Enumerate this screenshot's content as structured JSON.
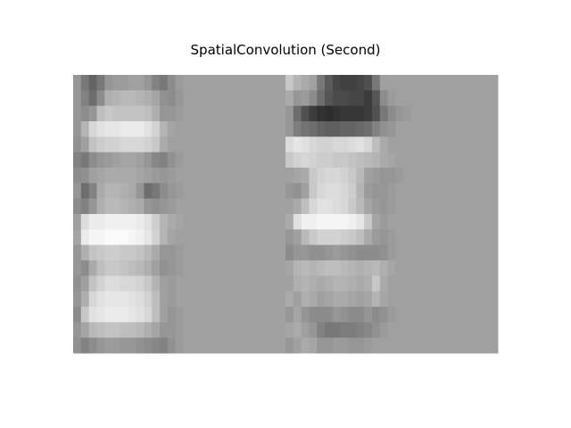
{
  "figure": {
    "title": "SpatialConvolution (Second)"
  },
  "chart_data": {
    "type": "heatmap",
    "title": "SpatialConvolution (Second)",
    "colormap": "gray",
    "value_range": [
      0,
      255
    ],
    "axes_visible": false,
    "rows": 18,
    "cols": 27,
    "values": [
      [
        150,
        120,
        100,
        120,
        150,
        155,
        155,
        160,
        160,
        150,
        130,
        120,
        140,
        155,
        160,
        160,
        160,
        160,
        160,
        160,
        160,
        160,
        160,
        160,
        160,
        160,
        160
      ],
      [
        150,
        130,
        110,
        140,
        175,
        180,
        185,
        185,
        180,
        175,
        165,
        145,
        140,
        150,
        160,
        160,
        160,
        160,
        160,
        160,
        160,
        160,
        160,
        160,
        160,
        160,
        160
      ],
      [
        150,
        140,
        150,
        190,
        200,
        195,
        195,
        195,
        195,
        190,
        175,
        150,
        150,
        155,
        160,
        160,
        160,
        160,
        160,
        160,
        160,
        160,
        160,
        160,
        160,
        160,
        160
      ],
      [
        150,
        180,
        215,
        225,
        230,
        230,
        235,
        235,
        235,
        225,
        210,
        180,
        165,
        160,
        160,
        160,
        160,
        160,
        160,
        160,
        160,
        160,
        160,
        160,
        160,
        160,
        160
      ],
      [
        145,
        160,
        195,
        205,
        210,
        210,
        215,
        215,
        215,
        210,
        200,
        170,
        160,
        160,
        160,
        160,
        160,
        160,
        160,
        160,
        160,
        160,
        160,
        160,
        160,
        160,
        160
      ],
      [
        130,
        120,
        140,
        150,
        155,
        160,
        165,
        165,
        160,
        150,
        135,
        130,
        145,
        155,
        160,
        160,
        160,
        160,
        160,
        160,
        160,
        160,
        160,
        160,
        160,
        160,
        160
      ],
      [
        140,
        145,
        160,
        165,
        170,
        170,
        170,
        170,
        165,
        160,
        155,
        150,
        155,
        160,
        160,
        160,
        160,
        160,
        160,
        160,
        160,
        160,
        160,
        160,
        160,
        160,
        160
      ],
      [
        150,
        110,
        130,
        170,
        180,
        180,
        175,
        170,
        150,
        110,
        120,
        140,
        150,
        155,
        160,
        160,
        160,
        160,
        160,
        160,
        160,
        160,
        160,
        160,
        160,
        160,
        160
      ],
      [
        140,
        130,
        150,
        175,
        185,
        185,
        180,
        175,
        170,
        150,
        145,
        150,
        155,
        160,
        160,
        160,
        160,
        160,
        160,
        160,
        160,
        160,
        160,
        160,
        160,
        160,
        160
      ],
      [
        160,
        220,
        235,
        235,
        240,
        240,
        240,
        240,
        235,
        225,
        205,
        180,
        170,
        165,
        160,
        160,
        160,
        160,
        160,
        160,
        160,
        160,
        160,
        160,
        160,
        160,
        160
      ],
      [
        165,
        235,
        245,
        245,
        250,
        250,
        250,
        245,
        240,
        230,
        210,
        180,
        165,
        160,
        160,
        160,
        160,
        160,
        160,
        160,
        160,
        160,
        160,
        160,
        160,
        160,
        160
      ],
      [
        150,
        175,
        195,
        200,
        205,
        205,
        200,
        200,
        195,
        185,
        170,
        150,
        150,
        155,
        160,
        160,
        160,
        160,
        160,
        160,
        160,
        160,
        160,
        160,
        160,
        160,
        160
      ],
      [
        150,
        140,
        170,
        190,
        200,
        200,
        195,
        190,
        185,
        175,
        160,
        145,
        150,
        155,
        160,
        160,
        160,
        160,
        160,
        160,
        160,
        160,
        160,
        160,
        160,
        160,
        160
      ],
      [
        145,
        160,
        195,
        210,
        220,
        220,
        215,
        215,
        210,
        200,
        180,
        160,
        155,
        160,
        160,
        160,
        160,
        160,
        160,
        160,
        160,
        160,
        160,
        160,
        160,
        160,
        160
      ],
      [
        150,
        175,
        215,
        225,
        230,
        230,
        230,
        225,
        220,
        210,
        190,
        160,
        155,
        160,
        160,
        160,
        160,
        160,
        160,
        160,
        160,
        160,
        160,
        160,
        160,
        160,
        160
      ],
      [
        140,
        200,
        225,
        230,
        235,
        235,
        235,
        230,
        225,
        215,
        190,
        160,
        150,
        155,
        160,
        160,
        160,
        160,
        160,
        160,
        160,
        160,
        160,
        160,
        160,
        160,
        160
      ],
      [
        150,
        165,
        185,
        190,
        195,
        195,
        190,
        190,
        185,
        175,
        165,
        150,
        150,
        155,
        160,
        160,
        160,
        160,
        160,
        160,
        160,
        160,
        160,
        160,
        160,
        160,
        160
      ],
      [
        145,
        130,
        140,
        150,
        155,
        155,
        150,
        150,
        145,
        140,
        135,
        130,
        145,
        155,
        160,
        160,
        160,
        160,
        160,
        160,
        160,
        160,
        160,
        160,
        160,
        160,
        160
      ]
    ],
    "values_right": [
      [
        200,
        180,
        170,
        160,
        120,
        90,
        70,
        65,
        65,
        70,
        80,
        120,
        160,
        160,
        160,
        160,
        160,
        160,
        160,
        160,
        160,
        160,
        160,
        160,
        160,
        160,
        160
      ],
      [
        170,
        150,
        155,
        140,
        110,
        85,
        75,
        75,
        70,
        70,
        60,
        85,
        140,
        155,
        160,
        160,
        160,
        160,
        160,
        160,
        160,
        160,
        160,
        160,
        160,
        160,
        160
      ],
      [
        150,
        110,
        80,
        60,
        50,
        45,
        50,
        55,
        55,
        55,
        60,
        80,
        120,
        140,
        150,
        155,
        160,
        160,
        160,
        160,
        160,
        160,
        160,
        160,
        160,
        160,
        160
      ],
      [
        150,
        125,
        115,
        110,
        100,
        95,
        95,
        100,
        100,
        105,
        110,
        130,
        145,
        150,
        160,
        160,
        160,
        160,
        160,
        160,
        160,
        160,
        160,
        160,
        160,
        160,
        160
      ],
      [
        220,
        230,
        225,
        215,
        210,
        210,
        215,
        215,
        220,
        225,
        215,
        190,
        170,
        160,
        160,
        160,
        160,
        160,
        160,
        160,
        160,
        160,
        160,
        160,
        160,
        160,
        160
      ],
      [
        200,
        210,
        215,
        210,
        205,
        205,
        200,
        200,
        195,
        190,
        185,
        180,
        170,
        165,
        160,
        160,
        160,
        160,
        160,
        160,
        160,
        160,
        160,
        160,
        160,
        160,
        160
      ],
      [
        160,
        165,
        170,
        200,
        210,
        215,
        215,
        210,
        200,
        185,
        160,
        155,
        150,
        150,
        155,
        160,
        160,
        160,
        160,
        160,
        160,
        160,
        160,
        160,
        160,
        160,
        160
      ],
      [
        150,
        145,
        160,
        200,
        215,
        220,
        220,
        215,
        205,
        180,
        155,
        150,
        150,
        155,
        160,
        160,
        160,
        160,
        160,
        160,
        160,
        160,
        160,
        160,
        160,
        160,
        160
      ],
      [
        160,
        170,
        190,
        215,
        225,
        225,
        220,
        215,
        200,
        185,
        165,
        155,
        150,
        155,
        160,
        160,
        160,
        160,
        160,
        160,
        160,
        160,
        160,
        160,
        160,
        160,
        160
      ],
      [
        170,
        225,
        240,
        240,
        245,
        245,
        245,
        245,
        240,
        230,
        200,
        165,
        155,
        160,
        160,
        160,
        160,
        160,
        160,
        160,
        160,
        160,
        160,
        160,
        160,
        160,
        160
      ],
      [
        150,
        160,
        185,
        200,
        210,
        210,
        210,
        205,
        200,
        190,
        170,
        155,
        150,
        155,
        160,
        160,
        160,
        160,
        160,
        160,
        160,
        160,
        160,
        160,
        160,
        160,
        160
      ],
      [
        140,
        150,
        150,
        145,
        145,
        150,
        155,
        150,
        145,
        140,
        140,
        140,
        145,
        155,
        160,
        160,
        160,
        160,
        160,
        160,
        160,
        160,
        160,
        160,
        160,
        160,
        160
      ],
      [
        165,
        180,
        185,
        180,
        185,
        190,
        190,
        185,
        180,
        175,
        180,
        185,
        175,
        165,
        160,
        160,
        160,
        160,
        160,
        160,
        160,
        160,
        160,
        160,
        160,
        160,
        160
      ],
      [
        160,
        175,
        180,
        175,
        170,
        175,
        180,
        180,
        175,
        170,
        175,
        200,
        170,
        160,
        160,
        160,
        160,
        160,
        160,
        160,
        160,
        160,
        160,
        160,
        160,
        160,
        160
      ],
      [
        170,
        160,
        175,
        170,
        160,
        165,
        170,
        170,
        165,
        160,
        165,
        180,
        165,
        160,
        160,
        160,
        160,
        160,
        160,
        160,
        160,
        160,
        160,
        160,
        160,
        160,
        160
      ],
      [
        150,
        165,
        150,
        140,
        140,
        140,
        150,
        145,
        140,
        140,
        150,
        140,
        145,
        155,
        160,
        160,
        160,
        160,
        160,
        160,
        160,
        160,
        160,
        160,
        160,
        160,
        160
      ],
      [
        165,
        170,
        160,
        150,
        130,
        120,
        120,
        125,
        125,
        130,
        135,
        145,
        155,
        160,
        160,
        160,
        160,
        160,
        160,
        160,
        160,
        160,
        160,
        160,
        160,
        160,
        160
      ],
      [
        150,
        160,
        170,
        165,
        150,
        150,
        155,
        155,
        150,
        150,
        155,
        160,
        160,
        160,
        160,
        160,
        160,
        160,
        160,
        160,
        160,
        160,
        160,
        160,
        160,
        160,
        160
      ]
    ]
  }
}
